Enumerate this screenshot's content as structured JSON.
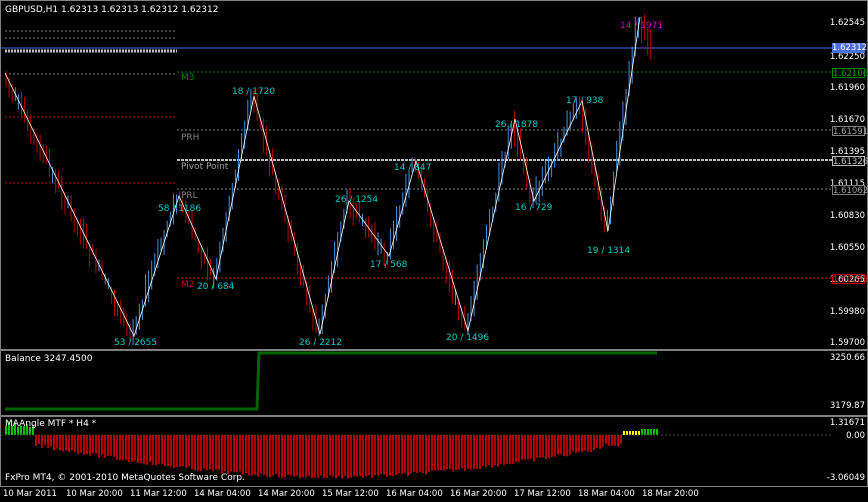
{
  "main_chart": {
    "symbol_title": "GBPUSD,H1  1.62313 1.62313 1.62312 1.62312",
    "price_ticks": [
      "1.62545",
      "1.62250",
      "1.61960",
      "1.61670",
      "1.61395",
      "1.61115",
      "1.60830",
      "1.60550",
      "1.60265",
      "1.59980",
      "1.59700"
    ],
    "current_price_tag": "1.62312",
    "levels": [
      {
        "name": "M3",
        "price_tag": "1.62106",
        "color": "#008000"
      },
      {
        "name": "PRH",
        "price_tag": "1.61591",
        "color": "#808080"
      },
      {
        "name": "Pivot Point",
        "price_tag": "1.61326",
        "color": "#c0c0c0"
      },
      {
        "name": "PRL",
        "price_tag": "1.61062",
        "color": "#808080"
      },
      {
        "name": "M2",
        "price_tag": "1.60283",
        "color": "#c00000"
      }
    ],
    "swing_labels": [
      {
        "text": "53 / 2655",
        "color": "#00c8c8"
      },
      {
        "text": "58 / 1186",
        "color": "#00c8c8"
      },
      {
        "text": "20 / 684",
        "color": "#00c8c8"
      },
      {
        "text": "18 / 1720",
        "color": "#00c8c8"
      },
      {
        "text": "26 / 2212",
        "color": "#00c8c8"
      },
      {
        "text": "26 / 1254",
        "color": "#00c8c8"
      },
      {
        "text": "17 / 568",
        "color": "#00c8c8"
      },
      {
        "text": "14 / 847",
        "color": "#00c8c8"
      },
      {
        "text": "20 / 1496",
        "color": "#00c8c8"
      },
      {
        "text": "26 / 1878",
        "color": "#00c8c8"
      },
      {
        "text": "16 / 729",
        "color": "#00c8c8"
      },
      {
        "text": "17 / 938",
        "color": "#00c8c8"
      },
      {
        "text": "19 / 1314",
        "color": "#00c8c8"
      },
      {
        "text": "14 / 1971",
        "color": "#c000c0"
      }
    ]
  },
  "balance_pane": {
    "title": "Balance 3247.4500",
    "ticks": [
      "3250.66",
      "3179.87"
    ]
  },
  "indicator_pane": {
    "title": "MAAngle MTF * H4 *",
    "ticks": [
      "1.31671",
      "0.00",
      "-3.06049"
    ],
    "copyright": "FxPro MT4, © 2001-2010 MetaQuotes Software Corp."
  },
  "time_axis": [
    "10 Mar 2011",
    "10 Mar 20:00",
    "11 Mar 12:00",
    "14 Mar 04:00",
    "14 Mar 20:00",
    "15 Mar 12:00",
    "16 Mar 04:00",
    "16 Mar 20:00",
    "17 Mar 12:00",
    "18 Mar 04:00",
    "18 Mar 20:00"
  ],
  "colors": {
    "bull": "#4a90d9",
    "bear": "#c00000",
    "zigzag": "#ffffff",
    "balance": "#006400"
  }
}
